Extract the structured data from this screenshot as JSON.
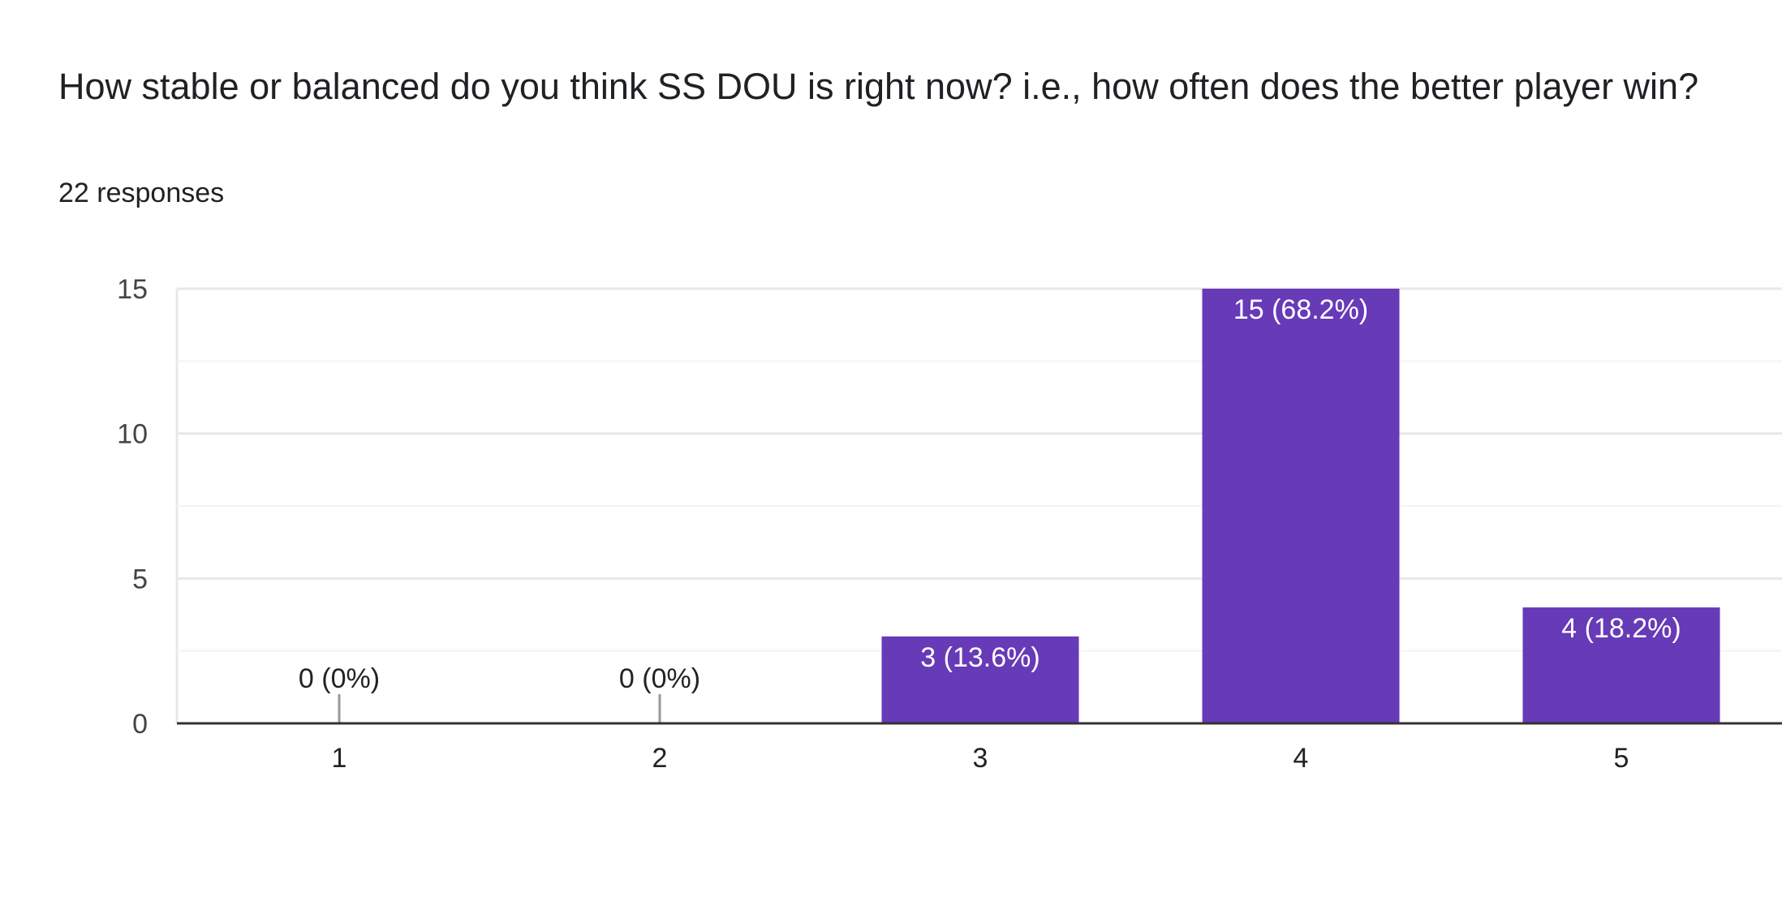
{
  "question": {
    "title": "How stable or balanced do you think SS DOU is right now? i.e., how often does the better player win?",
    "responses_label": "22 responses"
  },
  "colors": {
    "bar": "#673ab7",
    "grid": "#e8e8e8",
    "minor_grid": "#f3f3f3",
    "axis": "#333333",
    "tick_text": "#444444",
    "label_inside": "#ffffff",
    "label_outside": "#222222",
    "zero_stub": "#999999"
  },
  "chart_data": {
    "type": "bar",
    "title": "",
    "xlabel": "",
    "ylabel": "",
    "categories": [
      "1",
      "2",
      "3",
      "4",
      "5"
    ],
    "values": [
      0,
      0,
      3,
      15,
      4
    ],
    "data_labels": [
      "0 (0%)",
      "0 (0%)",
      "3 (13.6%)",
      "15 (68.2%)",
      "4 (18.2%)"
    ],
    "ylim": [
      0,
      15
    ],
    "y_ticks": [
      0,
      5,
      10,
      15
    ],
    "y_tick_labels": [
      "0",
      "5",
      "10",
      "15"
    ],
    "minor_gridlines": [
      2.5,
      7.5,
      12.5
    ],
    "grid": true,
    "legend": "none"
  }
}
